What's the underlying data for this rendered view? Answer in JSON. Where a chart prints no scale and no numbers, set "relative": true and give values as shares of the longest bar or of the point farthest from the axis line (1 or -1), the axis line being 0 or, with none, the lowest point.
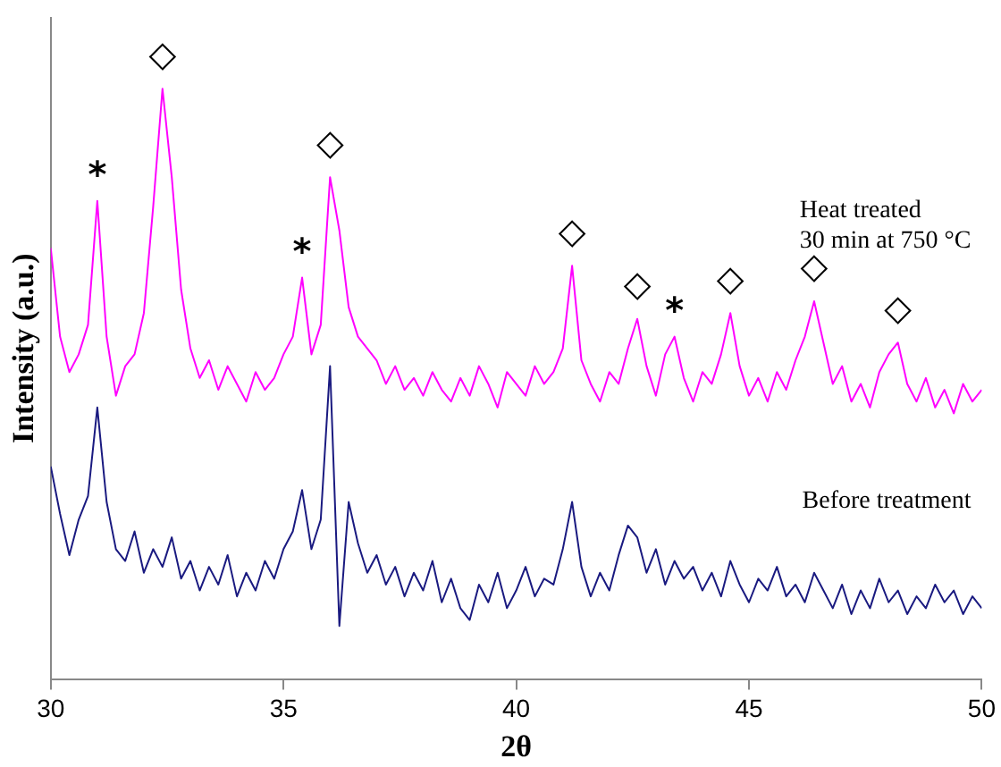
{
  "chart_data": {
    "type": "line",
    "xlabel": "2θ",
    "ylabel": "Intensity (a.u.)",
    "relative": true,
    "xlim": [
      30,
      50
    ],
    "xticks": [
      30,
      35,
      40,
      45,
      50
    ],
    "grid": false,
    "legend": false,
    "marker": "none",
    "x": [
      30.0,
      30.2,
      30.4,
      30.6,
      30.8,
      31.0,
      31.2,
      31.4,
      31.6,
      31.8,
      32.0,
      32.2,
      32.4,
      32.6,
      32.8,
      33.0,
      33.2,
      33.4,
      33.6,
      33.8,
      34.0,
      34.2,
      34.4,
      34.6,
      34.8,
      35.0,
      35.2,
      35.4,
      35.6,
      35.8,
      36.0,
      36.2,
      36.4,
      36.6,
      36.8,
      37.0,
      37.2,
      37.4,
      37.6,
      37.8,
      38.0,
      38.2,
      38.4,
      38.6,
      38.8,
      39.0,
      39.2,
      39.4,
      39.6,
      39.8,
      40.0,
      40.2,
      40.4,
      40.6,
      40.8,
      41.0,
      41.2,
      41.4,
      41.6,
      41.8,
      42.0,
      42.2,
      42.4,
      42.6,
      42.8,
      43.0,
      43.2,
      43.4,
      43.6,
      43.8,
      44.0,
      44.2,
      44.4,
      44.6,
      44.8,
      45.0,
      45.2,
      45.4,
      45.6,
      45.8,
      46.0,
      46.2,
      46.4,
      46.6,
      46.8,
      47.0,
      47.2,
      47.4,
      47.6,
      47.8,
      48.0,
      48.2,
      48.4,
      48.6,
      48.8,
      49.0,
      49.2,
      49.4,
      49.6,
      49.8,
      50.0
    ],
    "series": [
      {
        "name": "Heat treated\n30 min at 750 °C",
        "color": "#ff00ff",
        "values": [
          0.73,
          0.58,
          0.52,
          0.55,
          0.6,
          0.81,
          0.58,
          0.48,
          0.53,
          0.55,
          0.62,
          0.8,
          1.0,
          0.85,
          0.66,
          0.56,
          0.51,
          0.54,
          0.49,
          0.53,
          0.5,
          0.47,
          0.52,
          0.49,
          0.51,
          0.55,
          0.58,
          0.68,
          0.55,
          0.6,
          0.85,
          0.76,
          0.63,
          0.58,
          0.56,
          0.54,
          0.5,
          0.53,
          0.49,
          0.51,
          0.48,
          0.52,
          0.49,
          0.47,
          0.51,
          0.48,
          0.53,
          0.5,
          0.46,
          0.52,
          0.5,
          0.48,
          0.53,
          0.5,
          0.52,
          0.56,
          0.7,
          0.54,
          0.5,
          0.47,
          0.52,
          0.5,
          0.56,
          0.61,
          0.53,
          0.48,
          0.55,
          0.58,
          0.51,
          0.47,
          0.52,
          0.5,
          0.55,
          0.62,
          0.53,
          0.48,
          0.51,
          0.47,
          0.52,
          0.49,
          0.54,
          0.58,
          0.64,
          0.57,
          0.5,
          0.53,
          0.47,
          0.5,
          0.46,
          0.52,
          0.55,
          0.57,
          0.5,
          0.47,
          0.51,
          0.46,
          0.49,
          0.45,
          0.5,
          0.47,
          0.49
        ]
      },
      {
        "name": "Before treatment",
        "color": "#1a1a80",
        "values": [
          0.36,
          0.28,
          0.21,
          0.27,
          0.31,
          0.46,
          0.3,
          0.22,
          0.2,
          0.25,
          0.18,
          0.22,
          0.19,
          0.24,
          0.17,
          0.2,
          0.15,
          0.19,
          0.16,
          0.21,
          0.14,
          0.18,
          0.15,
          0.2,
          0.17,
          0.22,
          0.25,
          0.32,
          0.22,
          0.27,
          0.53,
          0.09,
          0.3,
          0.23,
          0.18,
          0.21,
          0.16,
          0.19,
          0.14,
          0.18,
          0.15,
          0.2,
          0.13,
          0.17,
          0.12,
          0.1,
          0.16,
          0.13,
          0.18,
          0.12,
          0.15,
          0.19,
          0.14,
          0.17,
          0.16,
          0.22,
          0.3,
          0.19,
          0.14,
          0.18,
          0.15,
          0.21,
          0.26,
          0.24,
          0.18,
          0.22,
          0.16,
          0.2,
          0.17,
          0.19,
          0.15,
          0.18,
          0.14,
          0.2,
          0.16,
          0.13,
          0.17,
          0.15,
          0.19,
          0.14,
          0.16,
          0.13,
          0.18,
          0.15,
          0.12,
          0.16,
          0.11,
          0.15,
          0.12,
          0.17,
          0.13,
          0.15,
          0.11,
          0.14,
          0.12,
          0.16,
          0.13,
          0.15,
          0.11,
          0.14,
          0.12
        ]
      }
    ],
    "annotations": [
      {
        "text": "◇",
        "x": 32.4,
        "y": 1.0
      },
      {
        "text": "◇",
        "x": 36.0,
        "y": 0.85
      },
      {
        "text": "◇",
        "x": 41.2,
        "y": 0.7
      },
      {
        "text": "◇",
        "x": 42.6,
        "y": 0.61
      },
      {
        "text": "◇",
        "x": 44.6,
        "y": 0.62
      },
      {
        "text": "◇",
        "x": 46.4,
        "y": 0.64
      },
      {
        "text": "◇",
        "x": 48.2,
        "y": 0.57
      },
      {
        "text": "*",
        "x": 31.0,
        "y": 0.81
      },
      {
        "text": "*",
        "x": 35.4,
        "y": 0.68
      },
      {
        "text": "*",
        "x": 43.4,
        "y": 0.58
      }
    ]
  }
}
